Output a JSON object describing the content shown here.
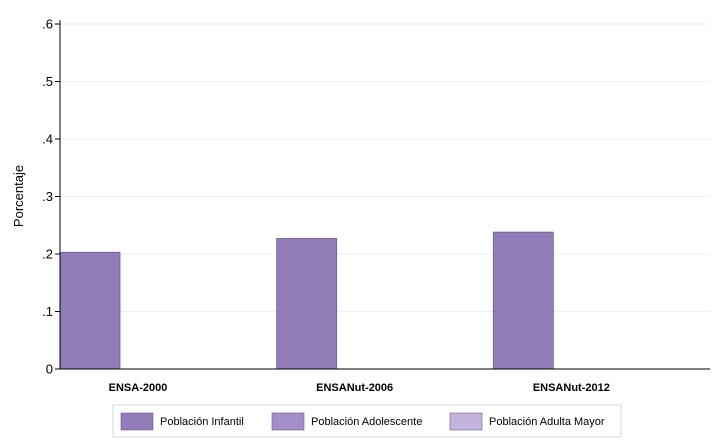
{
  "chart_data": {
    "type": "bar",
    "ylabel": "Porcentaje",
    "ylim": [
      0,
      0.6
    ],
    "yticks": [
      {
        "value": 0,
        "label": "0"
      },
      {
        "value": 0.1,
        "label": ".1"
      },
      {
        "value": 0.2,
        "label": ".2"
      },
      {
        "value": 0.3,
        "label": ".3"
      },
      {
        "value": 0.4,
        "label": ".4"
      },
      {
        "value": 0.5,
        "label": ".5"
      },
      {
        "value": 0.6,
        "label": ".6"
      }
    ],
    "categories": [
      "ENSA-2000",
      "ENSANut-2006",
      "ENSANut-2012"
    ],
    "series": [
      {
        "name": "Población Infantil",
        "color": "#937cba",
        "values": [
          0.203,
          0.227,
          0.238
        ]
      },
      {
        "name": "Población Adolescente",
        "color": "#a48fca",
        "values": [
          0,
          0,
          0
        ]
      },
      {
        "name": "Población Adulta Mayor",
        "color": "#c4b4dd",
        "values": [
          0,
          0,
          0
        ]
      }
    ],
    "grid": true,
    "legend": "bottom"
  }
}
